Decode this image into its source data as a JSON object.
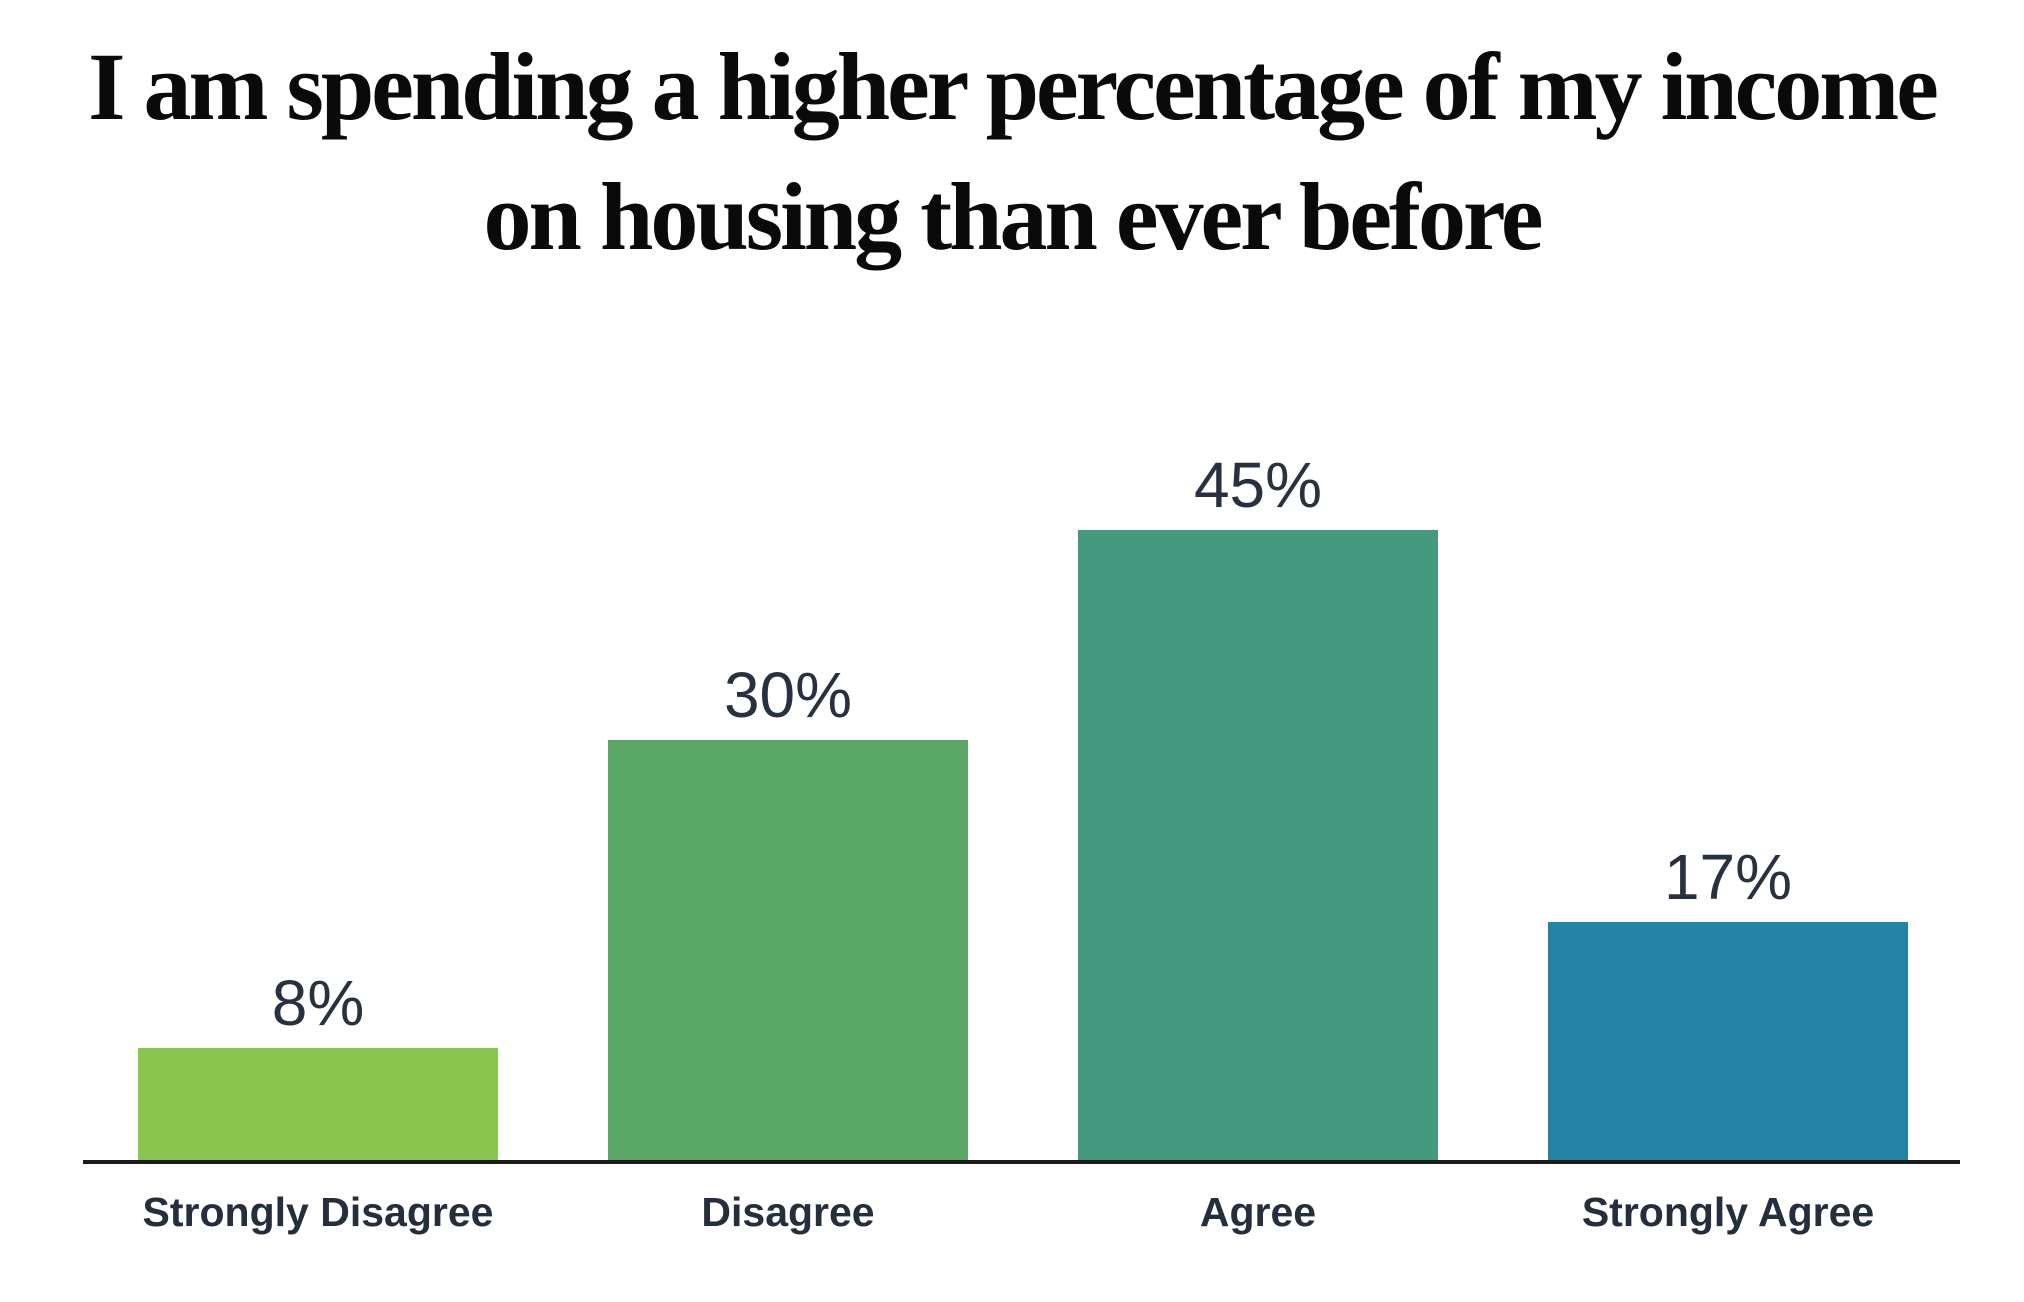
{
  "header": {
    "title_line1": "I am spending a higher percentage of my income",
    "title_line2": "on housing than ever before"
  },
  "chart_data": {
    "type": "bar",
    "title": "I am spending a higher percentage of my income on housing than ever before",
    "categories": [
      "Strongly Disagree",
      "Disagree",
      "Agree",
      "Strongly Agree"
    ],
    "values": [
      8,
      30,
      45,
      17
    ],
    "value_labels": [
      "8%",
      "30%",
      "45%",
      "17%"
    ],
    "bar_colors": [
      "#8bc34f",
      "#5ba767",
      "#44997f",
      "#2584a5"
    ],
    "xlabel": "",
    "ylabel": "",
    "ylim": [
      0,
      48
    ],
    "grid": false,
    "legend": false,
    "value_label_color": "#28313f",
    "category_label_color": "#242e3d",
    "axis_color": "#1b1b1b",
    "background_color": "#ffffff",
    "title_color": "#0a0a0a"
  }
}
